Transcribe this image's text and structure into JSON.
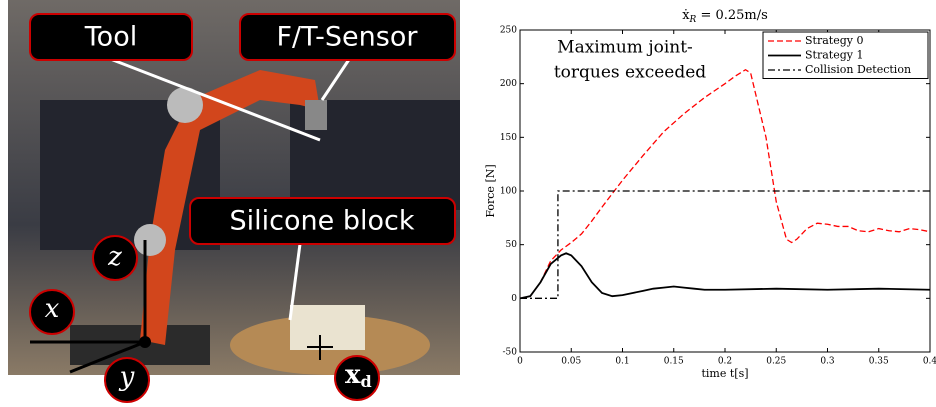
{
  "photo": {
    "labels": [
      {
        "text": "Tool"
      },
      {
        "text": "F/T-Sensor"
      },
      {
        "text": "Silicone block"
      },
      {
        "text": "z"
      },
      {
        "text": "x"
      },
      {
        "text": "y"
      },
      {
        "main": "x",
        "sub": "d"
      }
    ]
  },
  "chart_data": {
    "type": "line",
    "title": {
      "main": "ẋ",
      "sub": "R",
      "rest": " = 0.25m/s"
    },
    "x_label": "time t[s]",
    "y_label": "Force [N]",
    "annotation": [
      "Maximum joint-",
      "torques exceeded"
    ],
    "xlim": [
      0,
      0.4
    ],
    "ylim": [
      -50,
      250
    ],
    "xticks": [
      0,
      0.05,
      0.1,
      0.15,
      0.2,
      0.25,
      0.3,
      0.35,
      0.4
    ],
    "yticks": [
      -50,
      0,
      50,
      100,
      150,
      200,
      250
    ],
    "legend": "upper right",
    "series": [
      {
        "name": "Strategy 0",
        "color": "#ff0000",
        "style": "dashed",
        "x": [
          0,
          0.01,
          0.02,
          0.03,
          0.04,
          0.05,
          0.06,
          0.07,
          0.08,
          0.1,
          0.12,
          0.14,
          0.16,
          0.18,
          0.2,
          0.21,
          0.22,
          0.225,
          0.23,
          0.24,
          0.25,
          0.26,
          0.265,
          0.27,
          0.28,
          0.29,
          0.3,
          0.31,
          0.32,
          0.33,
          0.34,
          0.35,
          0.36,
          0.37,
          0.38,
          0.39,
          0.4
        ],
        "values": [
          0,
          2,
          15,
          35,
          45,
          52,
          60,
          72,
          85,
          110,
          133,
          155,
          172,
          187,
          200,
          207,
          213,
          210,
          190,
          150,
          90,
          55,
          52,
          55,
          65,
          70,
          69,
          67,
          67,
          63,
          62,
          65,
          63,
          62,
          65,
          64,
          62
        ]
      },
      {
        "name": "Strategy 1",
        "color": "#000000",
        "style": "solid",
        "x": [
          0,
          0.01,
          0.02,
          0.03,
          0.04,
          0.045,
          0.05,
          0.06,
          0.07,
          0.08,
          0.09,
          0.1,
          0.11,
          0.12,
          0.13,
          0.14,
          0.15,
          0.16,
          0.17,
          0.18,
          0.2,
          0.25,
          0.3,
          0.35,
          0.4
        ],
        "values": [
          0,
          2,
          15,
          32,
          40,
          42,
          40,
          30,
          15,
          5,
          2,
          3,
          5,
          7,
          9,
          10,
          11,
          10,
          9,
          8,
          8,
          9,
          8,
          9,
          8
        ]
      },
      {
        "name": "Collision Detection",
        "color": "#000000",
        "style": "dashdot",
        "x": [
          0,
          0.037,
          0.037,
          0.4
        ],
        "values": [
          0,
          0,
          100,
          100
        ]
      }
    ]
  }
}
